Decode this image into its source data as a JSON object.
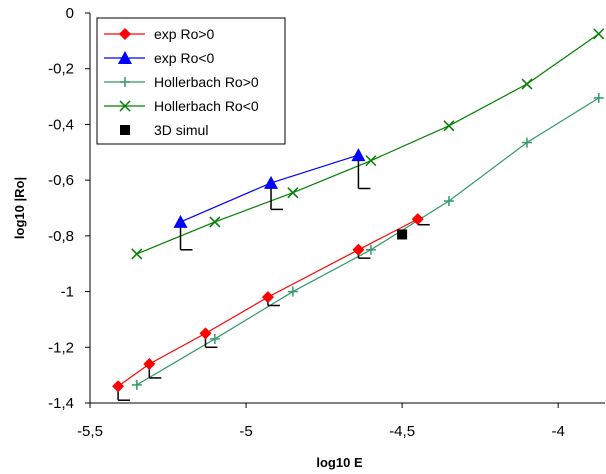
{
  "chart_data": {
    "type": "scatter",
    "title": "",
    "xlabel": "log10 E",
    "ylabel": "log10 |Ro|",
    "xlim": [
      -5.5,
      -3.85
    ],
    "ylim": [
      -1.4,
      0
    ],
    "xticks": [
      -5.5,
      -5,
      -4.5,
      -4
    ],
    "xtick_labels": [
      "-5,5",
      "-5",
      "-4,5",
      "-4"
    ],
    "yticks": [
      0,
      -0.2,
      -0.4,
      -0.6,
      -0.8,
      -1,
      -1.2,
      -1.4
    ],
    "ytick_labels": [
      "0",
      "-0,2",
      "-0,4",
      "-0,6",
      "-0,8",
      "-1",
      "-1,2",
      "-1,4"
    ],
    "grid": false,
    "legend_position": "top-left",
    "series": [
      {
        "name": "exp Ro>0",
        "color": "#ff0000",
        "marker": "diamond",
        "line": true,
        "x": [
          -5.41,
          -5.31,
          -5.13,
          -4.93,
          -4.64,
          -4.45
        ],
        "y": [
          -1.34,
          -1.26,
          -1.15,
          -1.02,
          -0.85,
          -0.74
        ],
        "error_low": [
          0.05,
          0.05,
          0.05,
          0.03,
          0.03,
          0.02
        ]
      },
      {
        "name": "exp Ro<0",
        "color": "#0000ff",
        "marker": "triangle",
        "line": true,
        "x": [
          -5.21,
          -4.92,
          -4.64
        ],
        "y": [
          -0.75,
          -0.61,
          -0.51
        ],
        "error_low": [
          0.1,
          0.095,
          0.12
        ]
      },
      {
        "name": "Hollerbach Ro>0",
        "color": "#339966",
        "marker": "plus",
        "line": true,
        "x": [
          -5.35,
          -5.1,
          -4.85,
          -4.6,
          -4.35,
          -4.1,
          -3.87
        ],
        "y": [
          -1.335,
          -1.17,
          -1.0,
          -0.85,
          -0.675,
          -0.465,
          -0.305
        ]
      },
      {
        "name": "Hollerbach Ro<0",
        "color": "#008000",
        "marker": "x",
        "line": true,
        "x": [
          -5.35,
          -5.1,
          -4.85,
          -4.6,
          -4.35,
          -4.1,
          -3.87
        ],
        "y": [
          -0.865,
          -0.75,
          -0.645,
          -0.53,
          -0.405,
          -0.255,
          -0.075
        ]
      },
      {
        "name": "3D simul",
        "color": "#000000",
        "marker": "square",
        "line": false,
        "x": [
          -4.5
        ],
        "y": [
          -0.795
        ]
      }
    ]
  }
}
